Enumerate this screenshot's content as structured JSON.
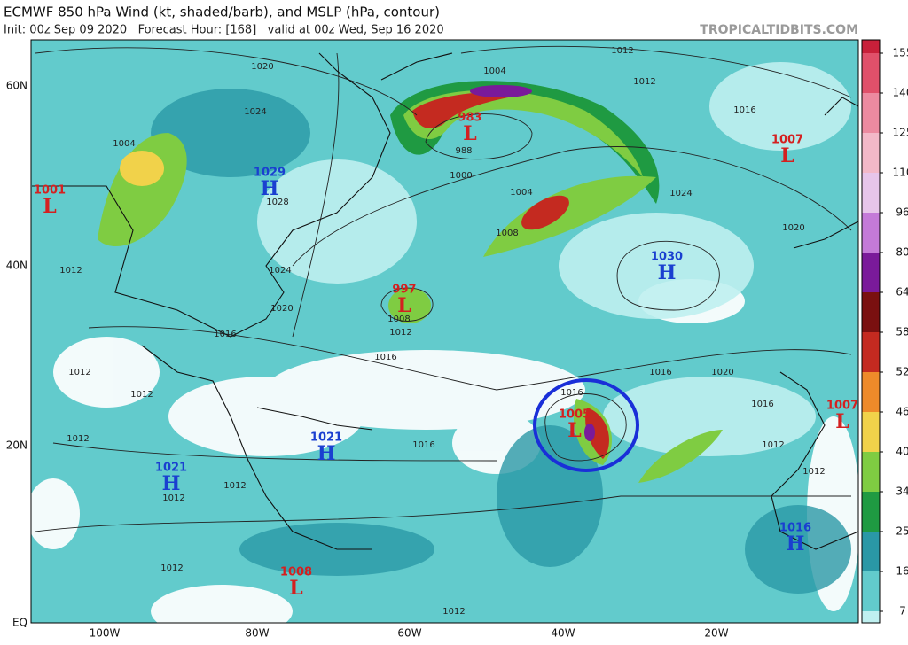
{
  "header": {
    "title": "ECMWF 850 hPa Wind (kt, shaded/barb), and MSLP (hPa, contour)",
    "subtitle": "Init: 00z Sep 09 2020   Forecast Hour: [168]   valid at 00z Wed, Sep 16 2020",
    "site": "TROPICALTIDBITS.COM"
  },
  "map": {
    "latitude_labels": [
      "60N",
      "40N",
      "20N",
      "EQ"
    ],
    "longitude_labels": [
      "100W",
      "80W",
      "60W",
      "40W",
      "20W"
    ],
    "centers": [
      {
        "value": 1001,
        "symbol": "L"
      },
      {
        "value": 1029,
        "symbol": "H"
      },
      {
        "value": 983,
        "symbol": "L"
      },
      {
        "value": 1007,
        "symbol": "L"
      },
      {
        "value": 1030,
        "symbol": "H"
      },
      {
        "value": 997,
        "symbol": "L"
      },
      {
        "value": 1005,
        "symbol": "L"
      },
      {
        "value": 1007,
        "symbol": "L"
      },
      {
        "value": 1021,
        "symbol": "H"
      },
      {
        "value": 1021,
        "symbol": "H"
      },
      {
        "value": 1016,
        "symbol": "H"
      },
      {
        "value": 1008,
        "symbol": "L"
      }
    ],
    "isobar_labels": [
      1020,
      1024,
      1012,
      1012,
      1016,
      1024,
      1020,
      1004,
      1000,
      1004,
      1008,
      1012,
      1024,
      1020,
      1016,
      1016,
      1012,
      1016,
      1020,
      1016,
      1016,
      1012,
      1016,
      1012,
      1012,
      1012,
      1012,
      1012,
      1012,
      1012,
      1008,
      1012,
      1028,
      1004,
      988
    ]
  },
  "colorbar": {
    "ticks": [
      155,
      140,
      125,
      110,
      96,
      80,
      64,
      58,
      52,
      46,
      40,
      34,
      25,
      16,
      7
    ],
    "colors": [
      "#c8203a",
      "#e0506a",
      "#ec8aa0",
      "#f3b8c8",
      "#e7c5ea",
      "#c47ad8",
      "#7a1a9a",
      "#7a1010",
      "#c42a20",
      "#ee8a2a",
      "#f1d24a",
      "#7fcc42",
      "#1f9a42",
      "#2a98a6",
      "#62cbcc",
      "#bff0f0"
    ]
  }
}
